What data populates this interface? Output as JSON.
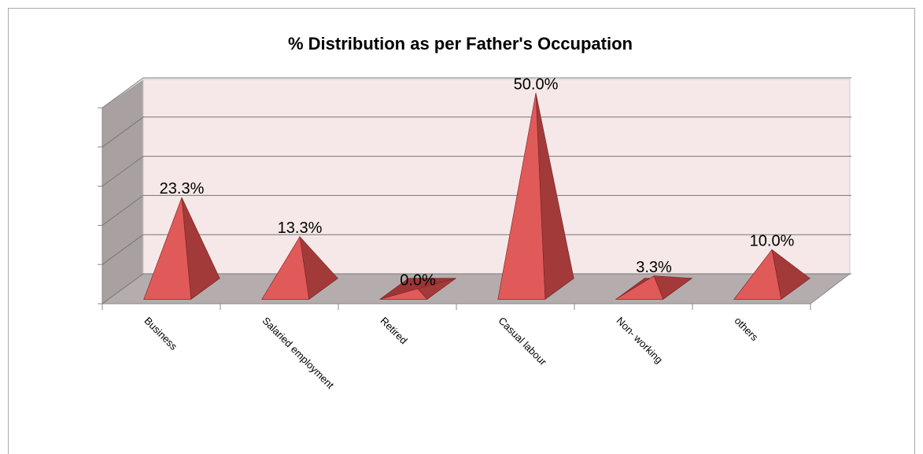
{
  "chart_data": {
    "type": "pyramid3d",
    "title": "% Distribution as per Father's Occupation",
    "categories": [
      "Business",
      "Salaried employment",
      "Retired",
      "Casual labour",
      "Non- working",
      "others"
    ],
    "values": [
      23.3,
      13.3,
      0,
      50,
      3.3,
      10
    ],
    "value_labels": [
      "23.3%",
      "13.3%",
      "0.0%",
      "50.0%",
      "3.3%",
      "10.0%"
    ],
    "color": "#e05a5a",
    "ylim": [
      0,
      50
    ],
    "yticks": [
      0,
      10,
      20,
      30,
      40,
      50
    ],
    "ytick_labels": false,
    "grid": true
  }
}
